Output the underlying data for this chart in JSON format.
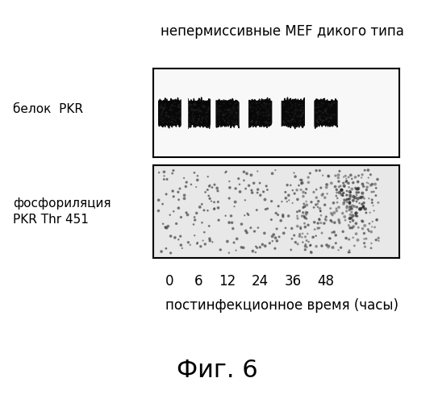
{
  "title": "непермиссивные МЕF дикого типа",
  "label_top_left_1": "белок  PKR",
  "label_top_left_2": "фосфориляция\nPKR Thr 451",
  "xlabel": "постинфекционное время (часы)",
  "xtick_labels": [
    "0",
    "6",
    "12",
    "24",
    "36",
    "48"
  ],
  "fig_label": "Фиг. 6",
  "background_color": "#ffffff",
  "panel_bg": "#f5f5f5",
  "band_color": "#111111",
  "noise_color": "#555555"
}
